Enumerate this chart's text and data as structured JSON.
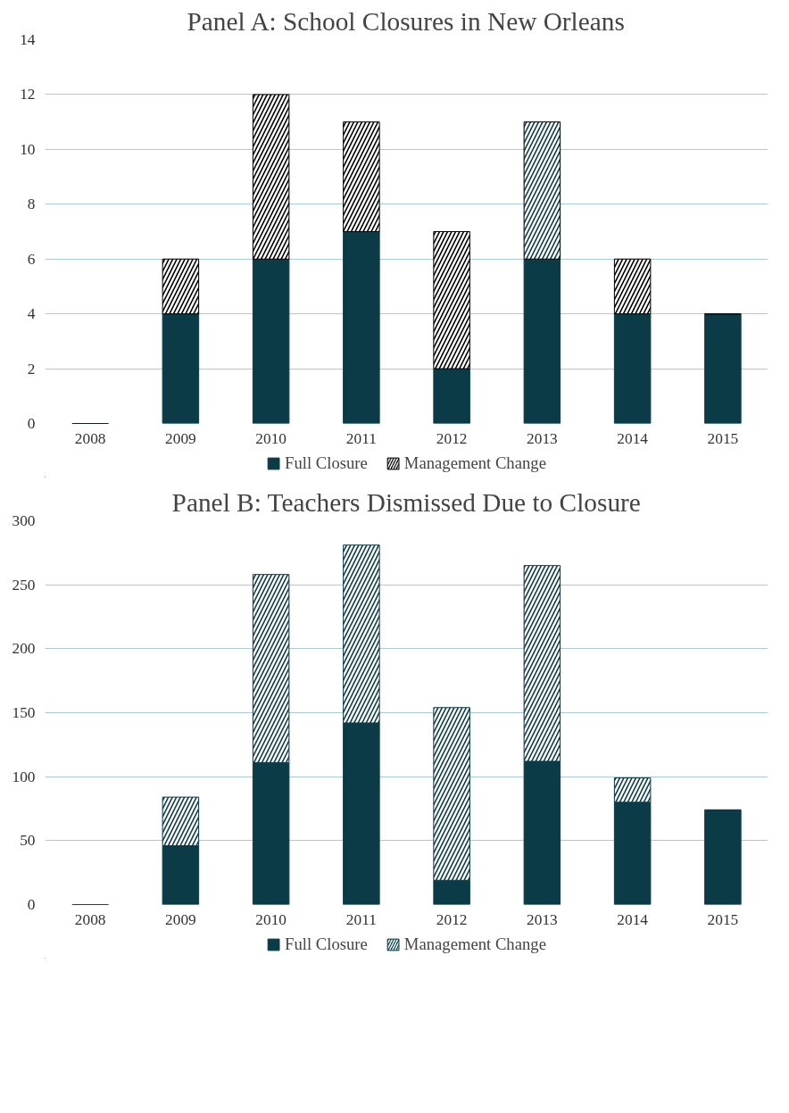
{
  "chart_data": [
    {
      "type": "bar",
      "title": "Panel A: School Closures in New Orleans",
      "stacked": true,
      "categories": [
        "2008",
        "2009",
        "2010",
        "2011",
        "2012",
        "2013",
        "2014",
        "2015"
      ],
      "series": [
        {
          "name": "Full Closure",
          "color": "#0b3b47",
          "values": [
            0,
            4,
            6,
            7,
            2,
            6,
            4,
            4
          ]
        },
        {
          "name": "Management Change",
          "color": "#000000",
          "colors": [
            "#000000",
            "#000000",
            "#000000",
            "#000000",
            "#000000",
            "#0b3b47",
            "#000000",
            "#000000"
          ],
          "values": [
            0,
            2,
            6,
            4,
            5,
            5,
            2,
            0
          ]
        }
      ],
      "ylim": [
        0,
        14
      ],
      "yticks": [
        0,
        2,
        4,
        6,
        8,
        10,
        12,
        14
      ],
      "grid": "y",
      "legend": "bottom"
    },
    {
      "type": "bar",
      "title": "Panel B: Teachers Dismissed Due to Closure",
      "stacked": true,
      "categories": [
        "2008",
        "2009",
        "2010",
        "2011",
        "2012",
        "2013",
        "2014",
        "2015"
      ],
      "series": [
        {
          "name": "Full Closure",
          "color": "#0b3b47",
          "values": [
            0,
            46,
            111,
            142,
            19,
            112,
            80,
            74
          ]
        },
        {
          "name": "Management Change",
          "color": "#0b3b47",
          "values": [
            0,
            38,
            147,
            139,
            135,
            153,
            19,
            0
          ]
        }
      ],
      "ylim": [
        0,
        300
      ],
      "yticks": [
        0,
        50,
        100,
        150,
        200,
        250,
        300
      ],
      "grid": "y",
      "legend": "bottom"
    }
  ]
}
